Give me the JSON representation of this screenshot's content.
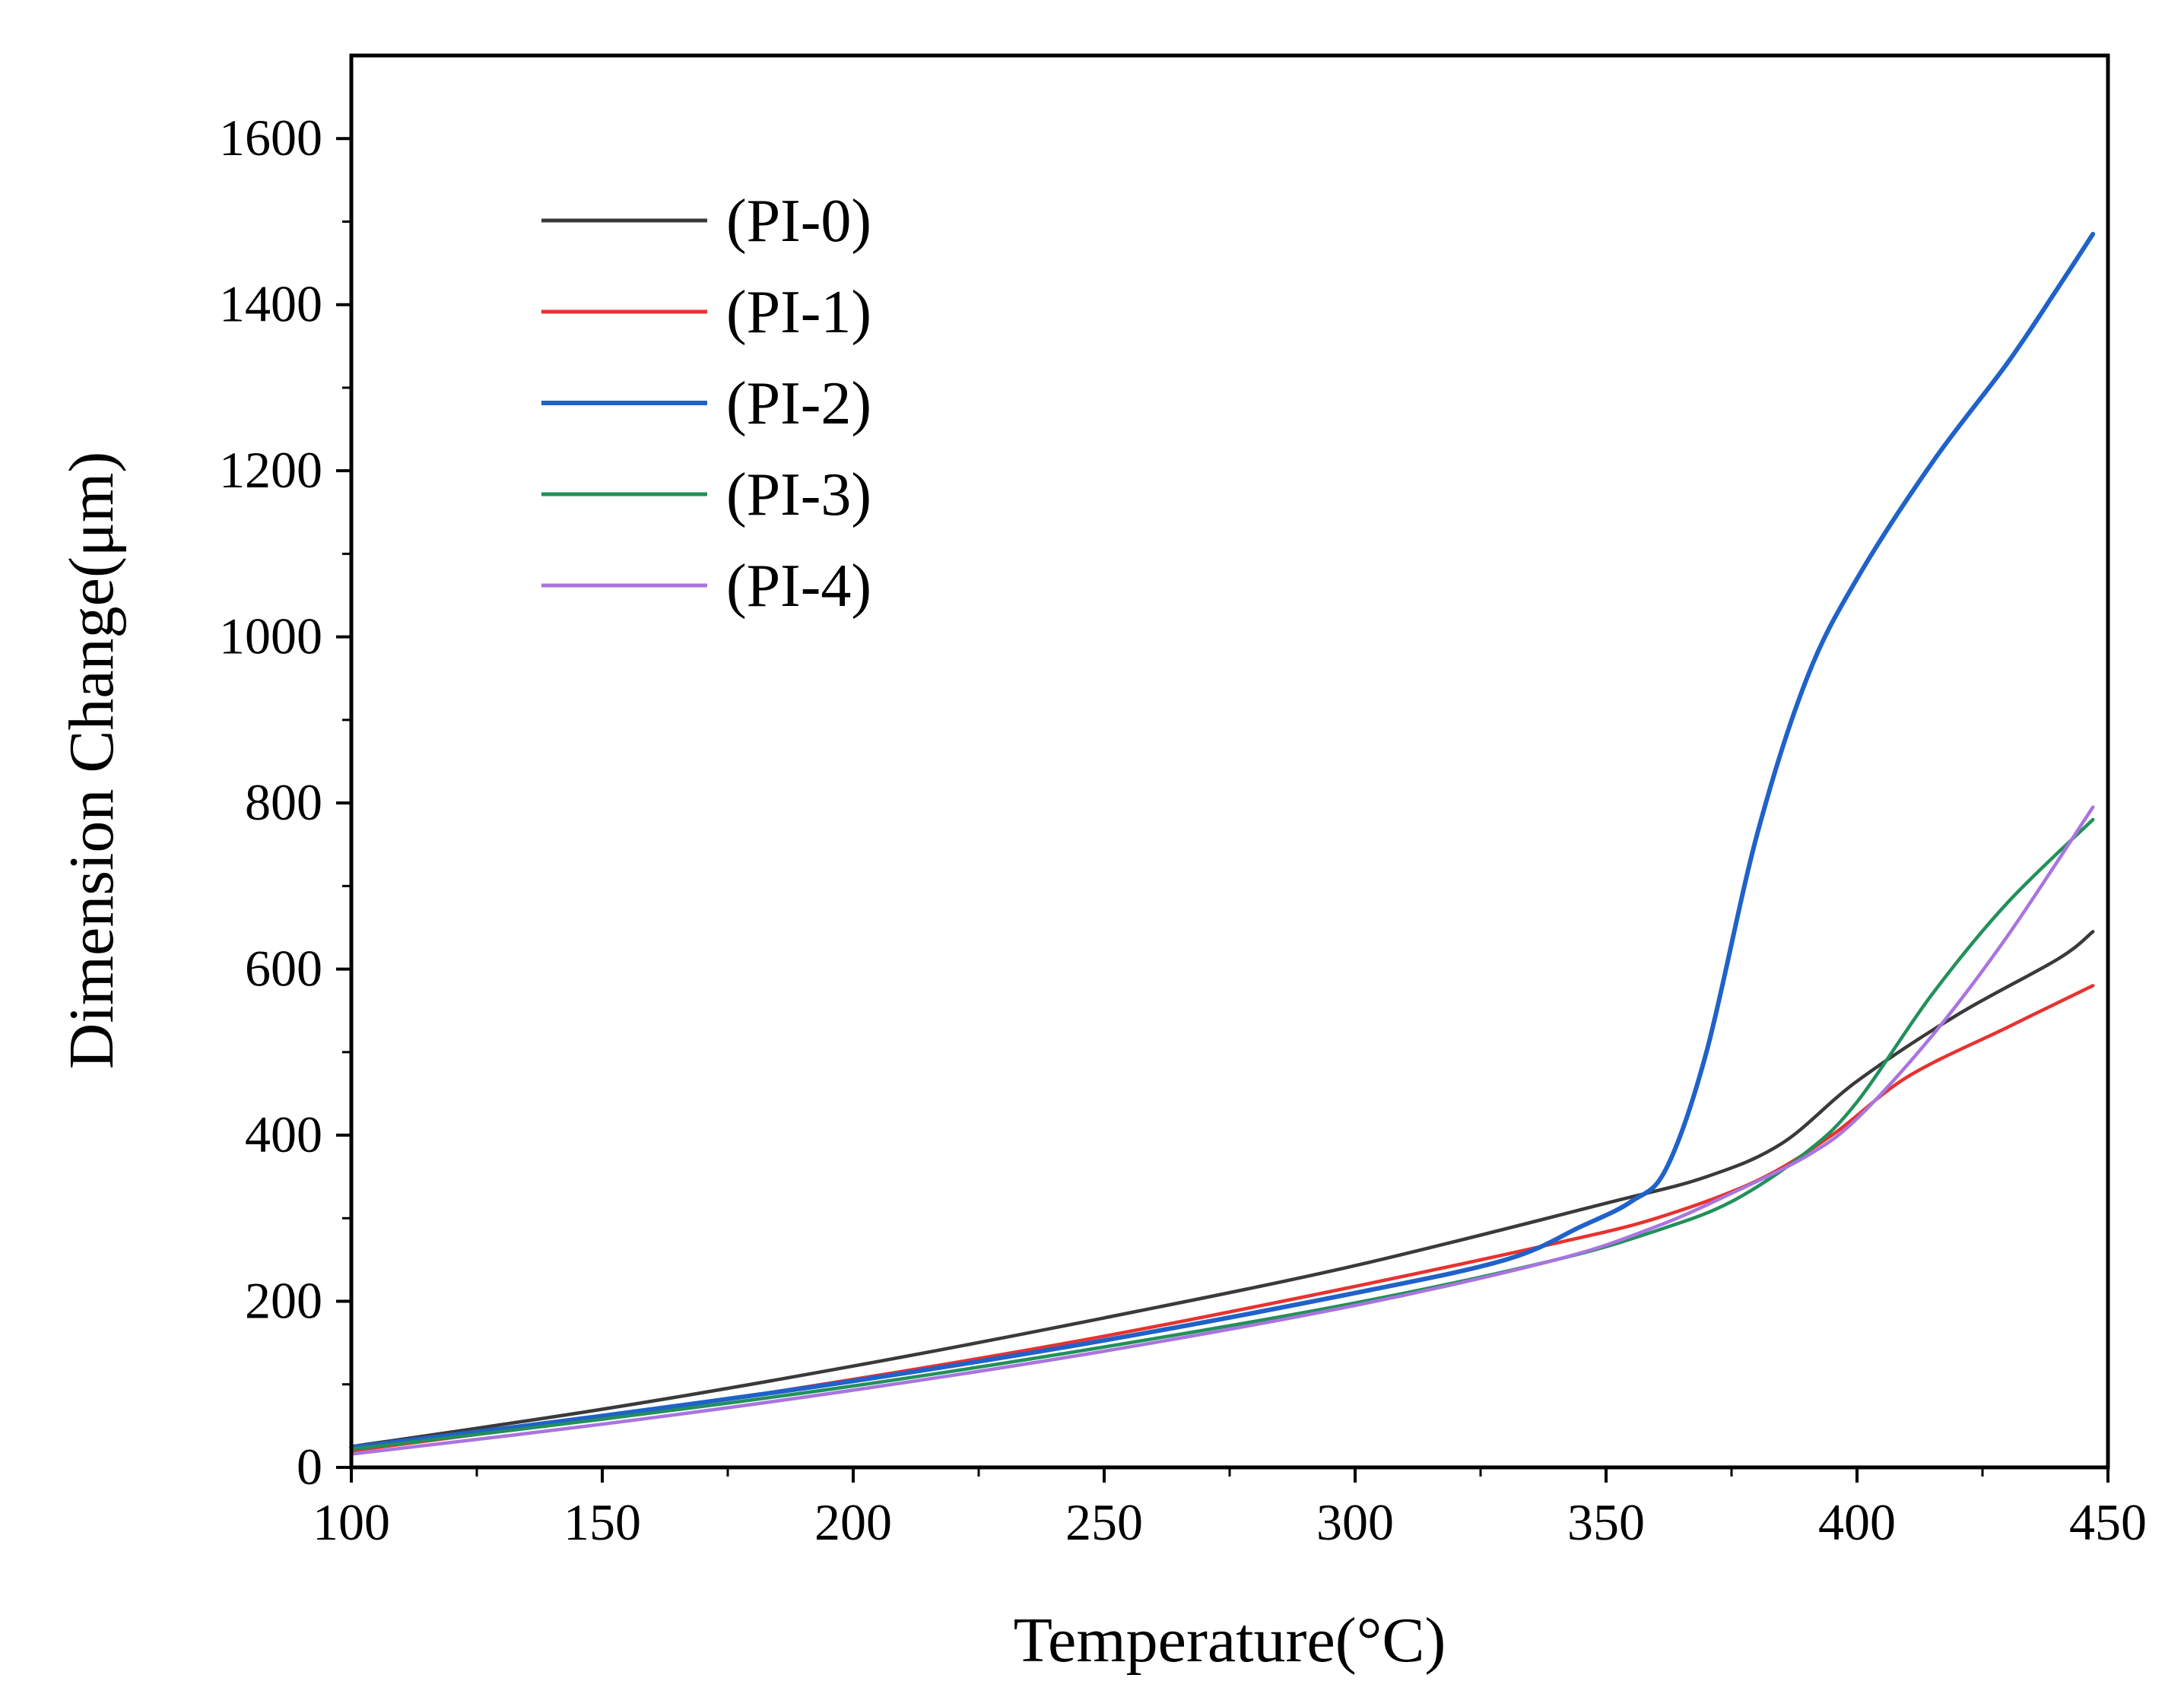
{
  "chart_data": {
    "type": "line",
    "xlabel": "Temperature(°C)",
    "ylabel": "Dimension Change(μm)",
    "xlim": [
      100,
      450
    ],
    "ylim": [
      0,
      1700
    ],
    "x_ticks": [
      100,
      150,
      200,
      250,
      300,
      350,
      400,
      450
    ],
    "x_tick_labels": [
      "100",
      "150",
      "200",
      "250",
      "300",
      "350",
      "400",
      "450"
    ],
    "y_ticks": [
      0,
      200,
      400,
      600,
      800,
      1000,
      1200,
      1400,
      1600
    ],
    "y_tick_labels": [
      "0",
      "200",
      "400",
      "600",
      "800",
      "1000",
      "1200",
      "1400",
      "1600"
    ],
    "legend_position": "top-left",
    "series": [
      {
        "name": "(PI-0)",
        "color": "#3a3a3a",
        "points": [
          [
            100,
            25
          ],
          [
            150,
            70
          ],
          [
            200,
            122
          ],
          [
            250,
            180
          ],
          [
            300,
            243
          ],
          [
            350,
            318
          ],
          [
            370,
            350
          ],
          [
            385,
            390
          ],
          [
            400,
            465
          ],
          [
            420,
            545
          ],
          [
            440,
            612
          ],
          [
            447,
            645
          ]
        ]
      },
      {
        "name": "(PI-1)",
        "color": "#e8322f",
        "points": [
          [
            100,
            20
          ],
          [
            150,
            60
          ],
          [
            200,
            106
          ],
          [
            250,
            158
          ],
          [
            300,
            218
          ],
          [
            340,
            270
          ],
          [
            360,
            300
          ],
          [
            380,
            345
          ],
          [
            395,
            400
          ],
          [
            410,
            470
          ],
          [
            430,
            530
          ],
          [
            447,
            580
          ]
        ]
      },
      {
        "name": "(PI-2)",
        "color": "#1f62c9",
        "points": [
          [
            100,
            24
          ],
          [
            150,
            62
          ],
          [
            200,
            104
          ],
          [
            250,
            153
          ],
          [
            300,
            210
          ],
          [
            330,
            250
          ],
          [
            345,
            290
          ],
          [
            355,
            320
          ],
          [
            362,
            360
          ],
          [
            370,
            500
          ],
          [
            380,
            760
          ],
          [
            390,
            950
          ],
          [
            400,
            1070
          ],
          [
            415,
            1210
          ],
          [
            430,
            1330
          ],
          [
            440,
            1420
          ],
          [
            447,
            1485
          ]
        ]
      },
      {
        "name": "(PI-3)",
        "color": "#22905a",
        "points": [
          [
            100,
            22
          ],
          [
            150,
            58
          ],
          [
            200,
            98
          ],
          [
            250,
            145
          ],
          [
            300,
            198
          ],
          [
            340,
            250
          ],
          [
            360,
            285
          ],
          [
            375,
            320
          ],
          [
            390,
            380
          ],
          [
            400,
            440
          ],
          [
            415,
            570
          ],
          [
            430,
            680
          ],
          [
            447,
            780
          ]
        ]
      },
      {
        "name": "(PI-4)",
        "color": "#a974e0",
        "points": [
          [
            100,
            16
          ],
          [
            150,
            52
          ],
          [
            200,
            93
          ],
          [
            250,
            140
          ],
          [
            300,
            195
          ],
          [
            340,
            250
          ],
          [
            360,
            290
          ],
          [
            375,
            330
          ],
          [
            390,
            375
          ],
          [
            400,
            420
          ],
          [
            415,
            520
          ],
          [
            430,
            640
          ],
          [
            447,
            795
          ]
        ]
      }
    ]
  }
}
